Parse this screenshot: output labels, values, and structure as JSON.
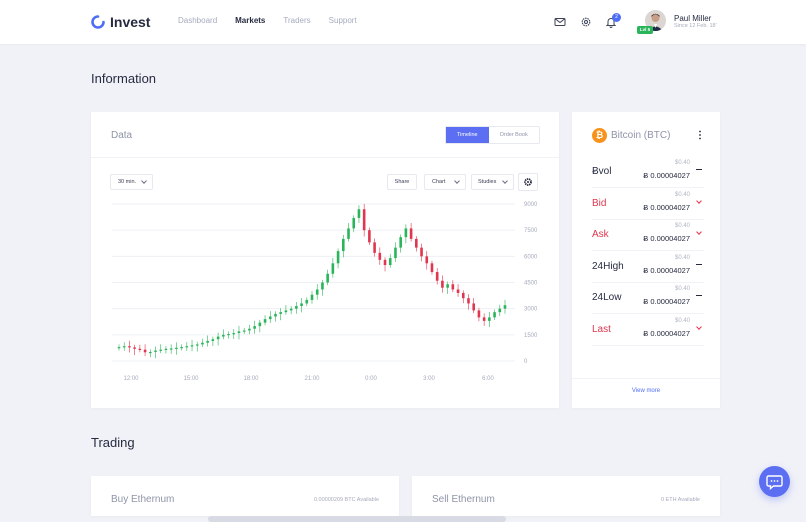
{
  "app": {
    "name": "Invest"
  },
  "nav": {
    "dashboard": "Dashboard",
    "markets": "Markets",
    "traders": "Traders",
    "support": "Support"
  },
  "header": {
    "notifications_count": "2",
    "user_name": "Paul Miller",
    "user_since": "Since 12 Feb. 18'",
    "level": "Lvl 5"
  },
  "information": {
    "title": "Information",
    "data_card": {
      "title": "Data",
      "tabs": [
        "Timeline",
        "Order Book"
      ],
      "interval": "30 min.",
      "buttons": {
        "share": "Share",
        "chart": "Chart",
        "studies": "Studies"
      }
    }
  },
  "bitcoin": {
    "title": "Bitcoin (BTC)",
    "rows": [
      {
        "label": "Ƀvol",
        "sub": "$0.40",
        "value": "Ƀ 0.00004027",
        "trend": "flat"
      },
      {
        "label": "Bid",
        "sub": "$0.40",
        "value": "Ƀ 0.00004027",
        "trend": "down"
      },
      {
        "label": "Ask",
        "sub": "$0.40",
        "value": "Ƀ 0.00004027",
        "trend": "down"
      },
      {
        "label": "24High",
        "sub": "$0.40",
        "value": "Ƀ 0.00004027",
        "trend": "flat"
      },
      {
        "label": "24Low",
        "sub": "$0.40",
        "value": "Ƀ 0.00004027",
        "trend": "flat"
      },
      {
        "label": "Last",
        "sub": "$0.40",
        "value": "Ƀ 0.00004027",
        "trend": "down"
      }
    ],
    "view_more": "View more"
  },
  "trading": {
    "title": "Trading",
    "buy": {
      "title": "Buy Ethernum",
      "available": "0.00000209 BTC Available"
    },
    "sell": {
      "title": "Sell Ethernum",
      "available": "0 ETH Available"
    }
  },
  "colors": {
    "accent": "#5c6ff2",
    "up": "#2bb55b",
    "down": "#e0364f",
    "bitcoin": "#f7931a"
  },
  "chart_data": {
    "type": "candlestick",
    "x_ticks": [
      "12:00",
      "15:00",
      "18:00",
      "21:00",
      "0:00",
      "3:00",
      "6:00"
    ],
    "y_ticks": [
      "9000",
      "7500",
      "6000",
      "4500",
      "3000",
      "1500",
      "0"
    ],
    "ylim": [
      0,
      9000
    ],
    "grid": true,
    "close": [
      800,
      850,
      780,
      700,
      650,
      500,
      520,
      600,
      650,
      700,
      720,
      760,
      800,
      850,
      900,
      950,
      1050,
      1150,
      1250,
      1400,
      1500,
      1550,
      1600,
      1700,
      1750,
      1850,
      2000,
      2200,
      2400,
      2550,
      2700,
      2800,
      2900,
      3000,
      3150,
      3300,
      3500,
      3800,
      4100,
      4500,
      5000,
      5600,
      6300,
      7000,
      7600,
      8200,
      8700,
      7500,
      6800,
      6200,
      5800,
      5500,
      5900,
      6500,
      7100,
      7600,
      7000,
      6500,
      6000,
      5600,
      5100,
      4600,
      4200,
      4400,
      4100,
      3900,
      3600,
      3300,
      2900,
      2500,
      2300,
      2500,
      2800,
      3000,
      3200
    ]
  }
}
